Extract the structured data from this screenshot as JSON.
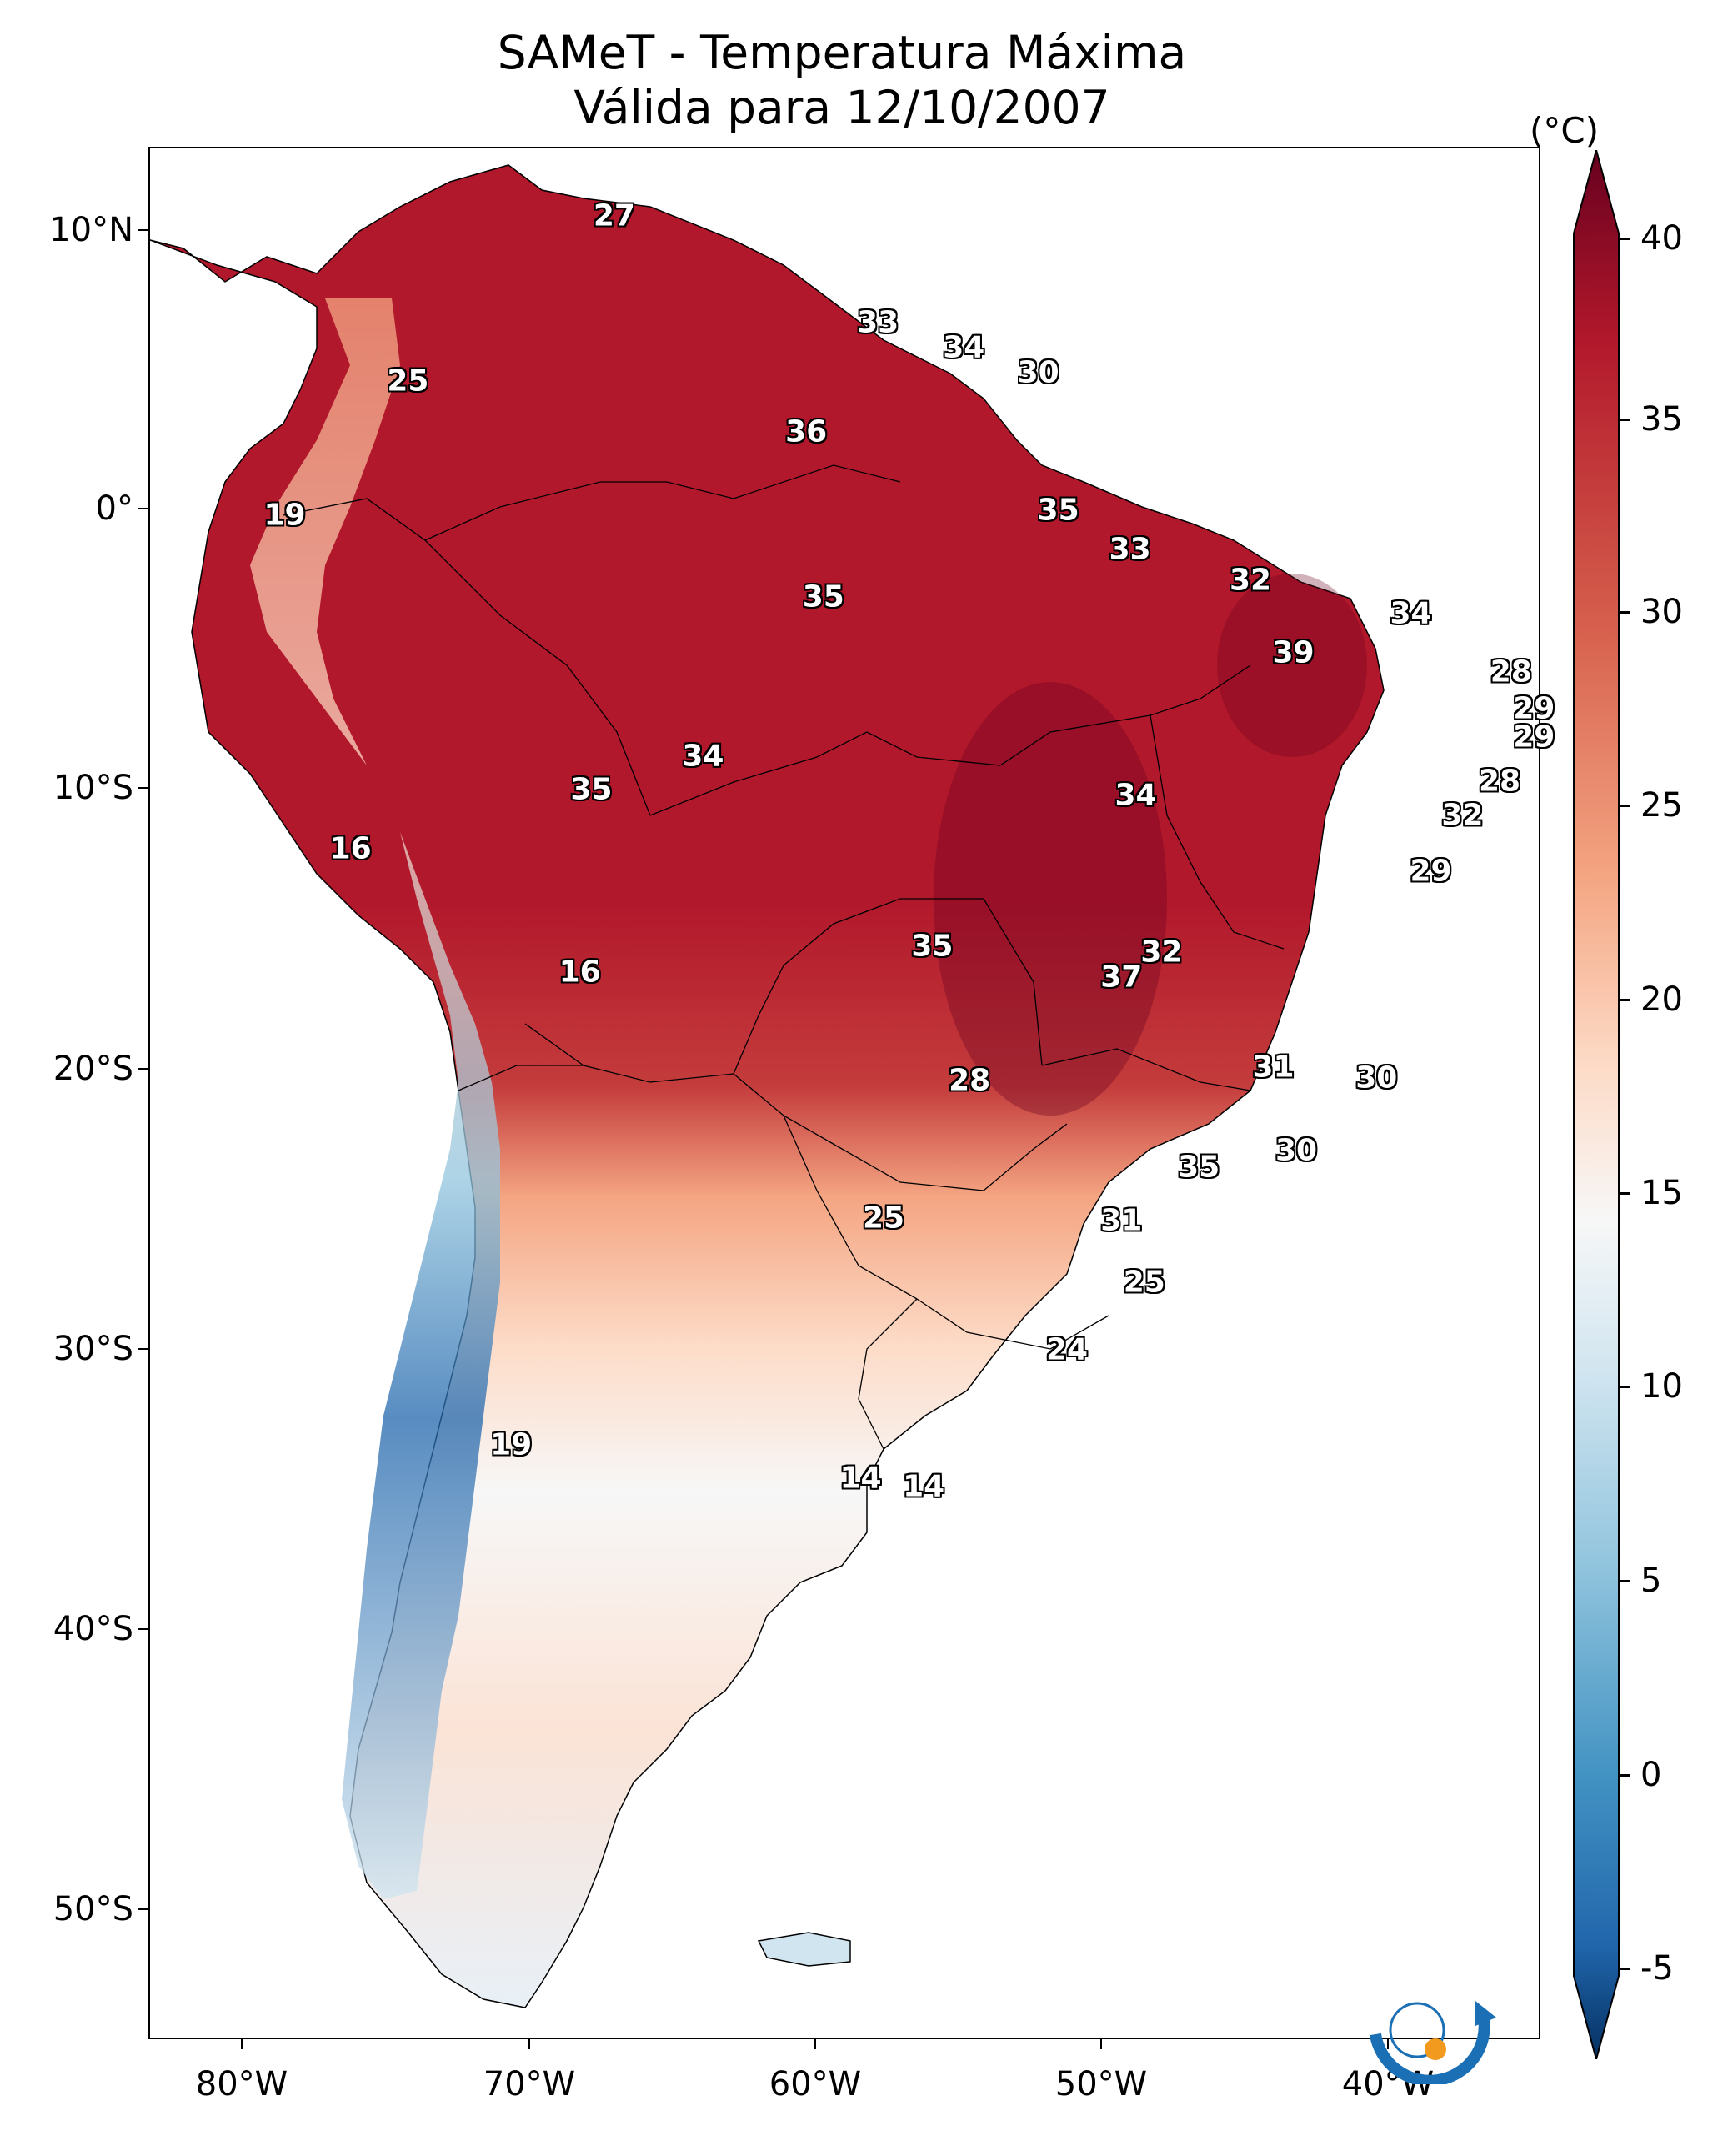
{
  "title": {
    "line1": "SAMeT - Temperatura Máxima",
    "line2": "Válida para 12/10/2007"
  },
  "map": {
    "lat_labels": [
      "10°N",
      "0°",
      "10°S",
      "20°S",
      "30°S",
      "40°S",
      "50°S"
    ],
    "lon_labels": [
      "80°W",
      "70°W",
      "60°W",
      "50°W",
      "40°W"
    ]
  },
  "colorbar": {
    "unit": "(°C)",
    "ticks": [
      "40",
      "35",
      "30",
      "25",
      "20",
      "15",
      "10",
      "5",
      "0",
      "-5"
    ],
    "min": -7,
    "max": 41,
    "colors": [
      "#053061",
      "#2166ac",
      "#4393c3",
      "#92c5de",
      "#d1e5f0",
      "#f7f7f7",
      "#fddbc7",
      "#f4a582",
      "#d6604d",
      "#b2182b",
      "#67001f"
    ]
  },
  "station_values": [
    {
      "label": "27",
      "lon": -67.0,
      "lat": 10.5
    },
    {
      "label": "33",
      "lon": -57.8,
      "lat": 6.7
    },
    {
      "label": "34",
      "lon": -54.8,
      "lat": 5.8
    },
    {
      "label": "30",
      "lon": -52.2,
      "lat": 4.9
    },
    {
      "label": "25",
      "lon": -74.2,
      "lat": 4.6
    },
    {
      "label": "36",
      "lon": -60.3,
      "lat": 2.8
    },
    {
      "label": "35",
      "lon": -51.5,
      "lat": 0.0
    },
    {
      "label": "19",
      "lon": -78.5,
      "lat": -0.2
    },
    {
      "label": "33",
      "lon": -49.0,
      "lat": -1.4
    },
    {
      "label": "32",
      "lon": -44.8,
      "lat": -2.5
    },
    {
      "label": "35",
      "lon": -59.7,
      "lat": -3.1
    },
    {
      "label": "34",
      "lon": -39.2,
      "lat": -3.7
    },
    {
      "label": "39",
      "lon": -43.3,
      "lat": -5.1
    },
    {
      "label": "28",
      "lon": -35.7,
      "lat": -5.8
    },
    {
      "label": "29",
      "lon": -34.9,
      "lat": -7.1
    },
    {
      "label": "29",
      "lon": -34.9,
      "lat": -8.1
    },
    {
      "label": "34",
      "lon": -63.9,
      "lat": -8.8
    },
    {
      "label": "35",
      "lon": -67.8,
      "lat": -10.0
    },
    {
      "label": "34",
      "lon": -48.8,
      "lat": -10.2
    },
    {
      "label": "28",
      "lon": -36.1,
      "lat": -9.7
    },
    {
      "label": "32",
      "lon": -37.4,
      "lat": -10.9
    },
    {
      "label": "16",
      "lon": -76.2,
      "lat": -12.1
    },
    {
      "label": "29",
      "lon": -38.5,
      "lat": -12.9
    },
    {
      "label": "35",
      "lon": -55.9,
      "lat": -15.6
    },
    {
      "label": "32",
      "lon": -47.9,
      "lat": -15.8
    },
    {
      "label": "37",
      "lon": -49.3,
      "lat": -16.7
    },
    {
      "label": "16",
      "lon": -68.2,
      "lat": -16.5
    },
    {
      "label": "31",
      "lon": -44.0,
      "lat": -19.9
    },
    {
      "label": "30",
      "lon": -40.4,
      "lat": -20.3
    },
    {
      "label": "28",
      "lon": -54.6,
      "lat": -20.4
    },
    {
      "label": "30",
      "lon": -43.2,
      "lat": -22.9
    },
    {
      "label": "35",
      "lon": -46.6,
      "lat": -23.5
    },
    {
      "label": "25",
      "lon": -57.6,
      "lat": -25.3
    },
    {
      "label": "31",
      "lon": -49.3,
      "lat": -25.4
    },
    {
      "label": "25",
      "lon": -48.5,
      "lat": -27.6
    },
    {
      "label": "24",
      "lon": -51.2,
      "lat": -30.0
    },
    {
      "label": "19",
      "lon": -70.6,
      "lat": -33.4
    },
    {
      "label": "14",
      "lon": -58.4,
      "lat": -34.6
    },
    {
      "label": "14",
      "lon": -56.2,
      "lat": -34.9
    }
  ]
}
